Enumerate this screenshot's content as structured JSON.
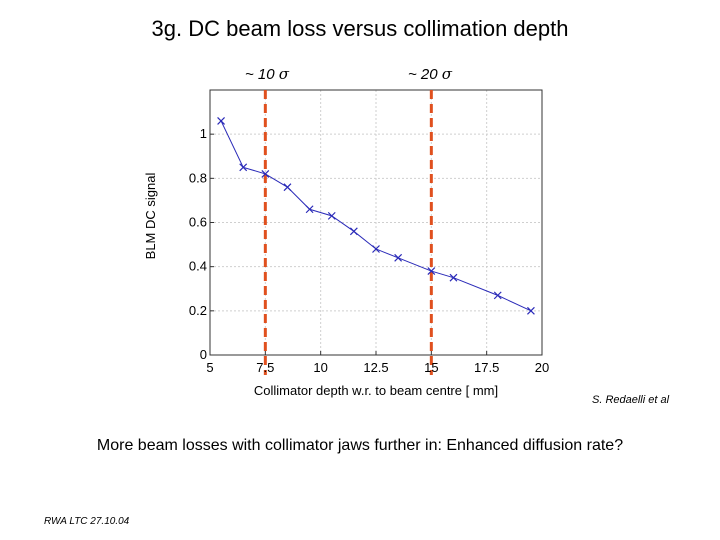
{
  "slide": {
    "title": "3g. DC beam loss versus collimation depth",
    "marker_labels": [
      {
        "prefix": "~ 10 ",
        "symbol": "σ"
      },
      {
        "prefix": "~ 20 ",
        "symbol": "σ"
      }
    ],
    "credit": "S. Redaelli et al",
    "conclusion": "More beam losses with collimator jaws further in: Enhanced diffusion rate?",
    "footer": "RWA LTC 27.10.04"
  },
  "chart_data": {
    "type": "line",
    "title": "",
    "xlabel": "Collimator depth w.r. to beam centre [ mm]",
    "ylabel": "BLM DC signal",
    "xlim": [
      5,
      20
    ],
    "ylim": [
      0,
      1.2
    ],
    "xticks": [
      5,
      7.5,
      10,
      12.5,
      15,
      17.5,
      20
    ],
    "xtick_labels": [
      "5",
      "7.5",
      "10",
      "12.5",
      "15",
      "17.5",
      "20"
    ],
    "yticks": [
      0,
      0.2,
      0.4,
      0.6,
      0.8,
      1
    ],
    "ytick_labels": [
      "0",
      "0.2",
      "0.4",
      "0.6",
      "0.8",
      "1"
    ],
    "grid": true,
    "series": [
      {
        "name": "BLM DC signal",
        "color": "#2a2ab8",
        "marker": "x",
        "x": [
          5.5,
          6.5,
          7.5,
          8.5,
          9.5,
          10.5,
          11.5,
          12.5,
          13.5,
          15.0,
          16.0,
          18.0,
          19.5
        ],
        "y": [
          1.06,
          0.85,
          0.82,
          0.76,
          0.66,
          0.63,
          0.56,
          0.48,
          0.44,
          0.38,
          0.35,
          0.27,
          0.2
        ]
      }
    ],
    "vlines": [
      {
        "x": 7.5,
        "color": "#e0501e",
        "style": "dashed"
      },
      {
        "x": 15.0,
        "color": "#e0501e",
        "style": "dashed"
      }
    ]
  }
}
